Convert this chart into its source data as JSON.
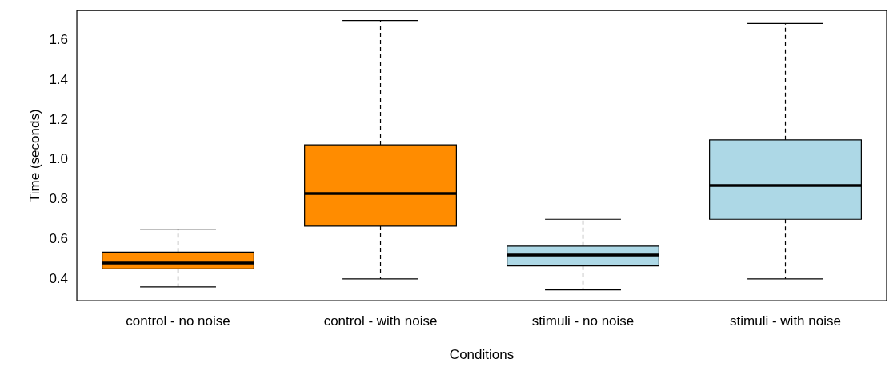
{
  "chart_data": {
    "type": "box",
    "xlabel": "Conditions",
    "ylabel": "Time (seconds)",
    "categories": [
      "control - no noise",
      "control - with noise",
      "stimuli - no noise",
      "stimuli - with noise"
    ],
    "colors": [
      "#ff8c00",
      "#ff8c00",
      "#add8e6",
      "#add8e6"
    ],
    "boxes": [
      {
        "low": 0.36,
        "q1": 0.45,
        "median": 0.48,
        "q3": 0.535,
        "high": 0.65
      },
      {
        "low": 0.4,
        "q1": 0.665,
        "median": 0.83,
        "q3": 1.075,
        "high": 1.7
      },
      {
        "low": 0.345,
        "q1": 0.465,
        "median": 0.52,
        "q3": 0.565,
        "high": 0.7
      },
      {
        "low": 0.4,
        "q1": 0.7,
        "median": 0.87,
        "q3": 1.1,
        "high": 1.685
      }
    ],
    "ylim": [
      0.29,
      1.75
    ],
    "yticks": [
      0.4,
      0.6,
      0.8,
      {
        "value": 1,
        "label": "1.0"
      },
      1.2,
      1.4,
      1.6
    ]
  }
}
